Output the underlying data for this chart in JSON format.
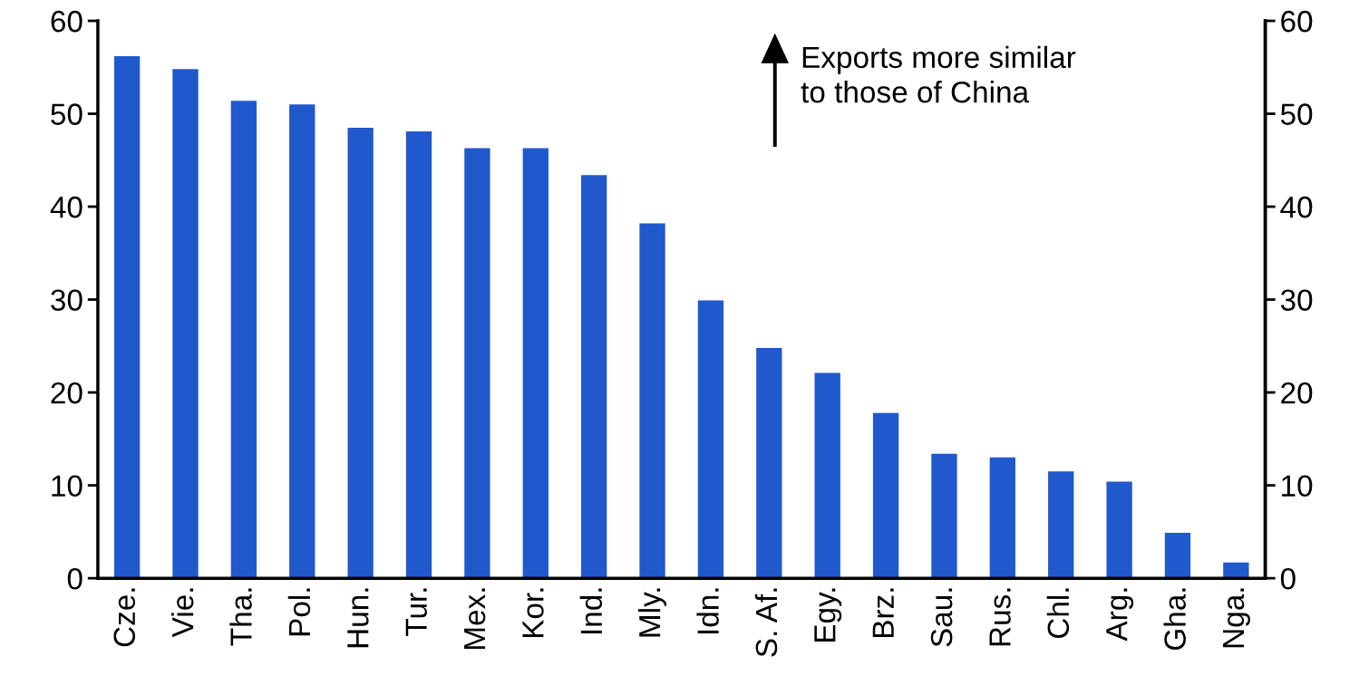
{
  "chart_data": {
    "type": "bar",
    "categories": [
      "Cze.",
      "Vie.",
      "Tha.",
      "Pol.",
      "Hun.",
      "Tur.",
      "Mex.",
      "Kor.",
      "Ind.",
      "Mly.",
      "Idn.",
      "S. Af.",
      "Egy.",
      "Brz.",
      "Sau.",
      "Rus.",
      "Chl.",
      "Arg.",
      "Gha.",
      "Nga."
    ],
    "values": [
      56.2,
      54.8,
      51.4,
      51.0,
      48.5,
      48.1,
      46.3,
      46.3,
      43.4,
      38.2,
      29.9,
      24.8,
      22.1,
      17.8,
      13.4,
      13.0,
      11.5,
      10.4,
      4.9,
      1.7
    ],
    "color": "#2059cc",
    "ylim": [
      0,
      60
    ],
    "yticks": [
      0,
      10,
      20,
      30,
      40,
      50,
      60
    ],
    "y2lim": [
      0,
      60
    ],
    "y2ticks": [
      0,
      10,
      20,
      30,
      40,
      50,
      60
    ],
    "annotations": [
      "Exports more similar\nto those of China"
    ],
    "grid": false
  }
}
